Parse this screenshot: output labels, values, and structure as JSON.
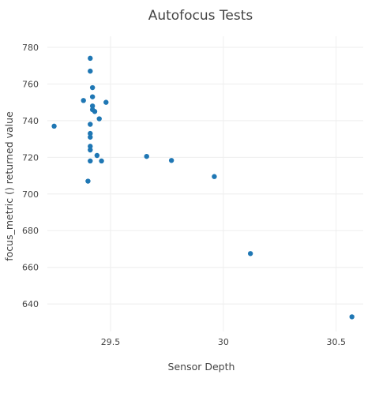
{
  "chart_data": {
    "type": "scatter",
    "title": "Autofocus Tests",
    "xlabel": "Sensor Depth",
    "ylabel": "focus_metric () returned value",
    "xlim": [
      29.22,
      30.62
    ],
    "ylim": [
      625,
      786
    ],
    "x_ticks": [
      29.5,
      30,
      30.5
    ],
    "x_tick_labels": [
      "29.5",
      "30",
      "30.5"
    ],
    "y_ticks": [
      640,
      660,
      680,
      700,
      720,
      740,
      760,
      780
    ],
    "y_tick_labels": [
      "640",
      "660",
      "680",
      "700",
      "720",
      "740",
      "760",
      "780"
    ],
    "grid": true,
    "legend": "none",
    "marker_color": "#1f77b4",
    "series": [
      {
        "points": [
          {
            "x": 29.25,
            "y": 737
          },
          {
            "x": 29.38,
            "y": 751
          },
          {
            "x": 29.4,
            "y": 707
          },
          {
            "x": 29.41,
            "y": 774
          },
          {
            "x": 29.41,
            "y": 767
          },
          {
            "x": 29.42,
            "y": 758
          },
          {
            "x": 29.42,
            "y": 753
          },
          {
            "x": 29.42,
            "y": 748
          },
          {
            "x": 29.42,
            "y": 746
          },
          {
            "x": 29.43,
            "y": 745
          },
          {
            "x": 29.41,
            "y": 738
          },
          {
            "x": 29.41,
            "y": 733
          },
          {
            "x": 29.41,
            "y": 731
          },
          {
            "x": 29.41,
            "y": 726
          },
          {
            "x": 29.41,
            "y": 724
          },
          {
            "x": 29.44,
            "y": 721
          },
          {
            "x": 29.41,
            "y": 718
          },
          {
            "x": 29.46,
            "y": 718
          },
          {
            "x": 29.45,
            "y": 741
          },
          {
            "x": 29.48,
            "y": 750
          },
          {
            "x": 29.66,
            "y": 720.5
          },
          {
            "x": 29.77,
            "y": 718.3
          },
          {
            "x": 29.96,
            "y": 709.5
          },
          {
            "x": 30.12,
            "y": 667.5
          },
          {
            "x": 30.57,
            "y": 633
          }
        ]
      }
    ]
  }
}
